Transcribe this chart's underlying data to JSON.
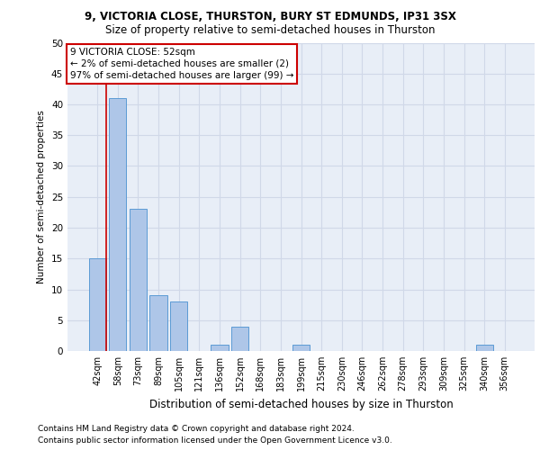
{
  "title1": "9, VICTORIA CLOSE, THURSTON, BURY ST EDMUNDS, IP31 3SX",
  "title2": "Size of property relative to semi-detached houses in Thurston",
  "xlabel": "Distribution of semi-detached houses by size in Thurston",
  "ylabel": "Number of semi-detached properties",
  "footnote1": "Contains HM Land Registry data © Crown copyright and database right 2024.",
  "footnote2": "Contains public sector information licensed under the Open Government Licence v3.0.",
  "categories": [
    "42sqm",
    "58sqm",
    "73sqm",
    "89sqm",
    "105sqm",
    "121sqm",
    "136sqm",
    "152sqm",
    "168sqm",
    "183sqm",
    "199sqm",
    "215sqm",
    "230sqm",
    "246sqm",
    "262sqm",
    "278sqm",
    "293sqm",
    "309sqm",
    "325sqm",
    "340sqm",
    "356sqm"
  ],
  "values": [
    15,
    41,
    23,
    9,
    8,
    0,
    1,
    4,
    0,
    0,
    1,
    0,
    0,
    0,
    0,
    0,
    0,
    0,
    0,
    1,
    0
  ],
  "bar_color": "#aec6e8",
  "bar_edge_color": "#5b9bd5",
  "grid_color": "#d0d8e8",
  "bg_color": "#e8eef7",
  "annotation_text_line1": "9 VICTORIA CLOSE: 52sqm",
  "annotation_text_line2": "← 2% of semi-detached houses are smaller (2)",
  "annotation_text_line3": "97% of semi-detached houses are larger (99) →",
  "annotation_box_color": "#cc0000",
  "ylim": [
    0,
    50
  ],
  "yticks": [
    0,
    5,
    10,
    15,
    20,
    25,
    30,
    35,
    40,
    45,
    50
  ],
  "title1_fontsize": 8.5,
  "title2_fontsize": 8.5,
  "ylabel_fontsize": 7.5,
  "xlabel_fontsize": 8.5,
  "footnote_fontsize": 6.5,
  "tick_fontsize": 7.5,
  "ann_fontsize": 7.5
}
